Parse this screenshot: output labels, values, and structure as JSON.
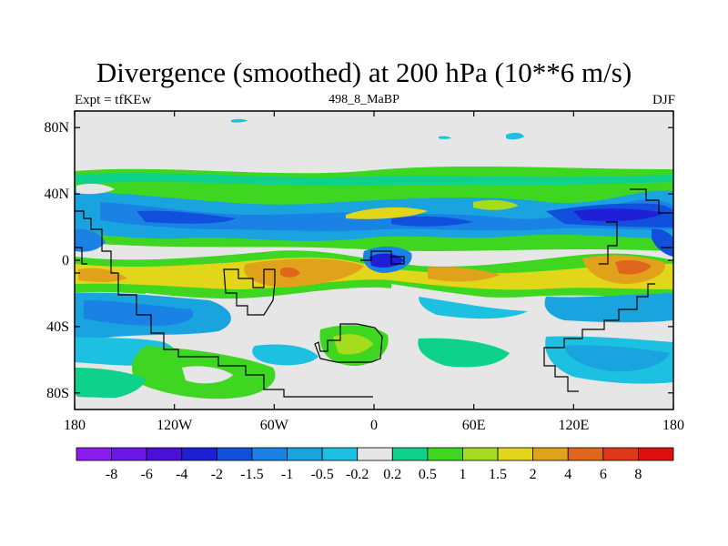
{
  "header": {
    "title": "Divergence (smoothed) at 200 hPa (10**6 m/s)",
    "left_label": "Expt = tfKEw",
    "center_label": "498_8_MaBP",
    "right_label": "DJF"
  },
  "map": {
    "lat_ticks": [
      "80N",
      "40N",
      "0",
      "40S",
      "80S"
    ],
    "lon_ticks": [
      "180",
      "120W",
      "60W",
      "0",
      "60E",
      "120E",
      "180"
    ],
    "lon_range": [
      -180,
      180
    ],
    "lat_range": [
      -90,
      90
    ],
    "coastline_color": "#000000"
  },
  "colorbar": {
    "labels": [
      "-8",
      "-6",
      "-4",
      "-2",
      "-1.5",
      "-1",
      "-0.5",
      "-0.2",
      "0.2",
      "0.5",
      "1",
      "1.5",
      "2",
      "4",
      "6",
      "8"
    ],
    "colors": [
      "#8b1cf0",
      "#6a17e8",
      "#4a10d8",
      "#1f1fd8",
      "#1050dd",
      "#1a82e5",
      "#19a3df",
      "#1cc0e0",
      "#e6e6e6",
      "#0ed18c",
      "#3fd622",
      "#a5dd1e",
      "#e1d61a",
      "#e1a21b",
      "#e0661c",
      "#e0371a",
      "#e00f0f"
    ]
  }
}
